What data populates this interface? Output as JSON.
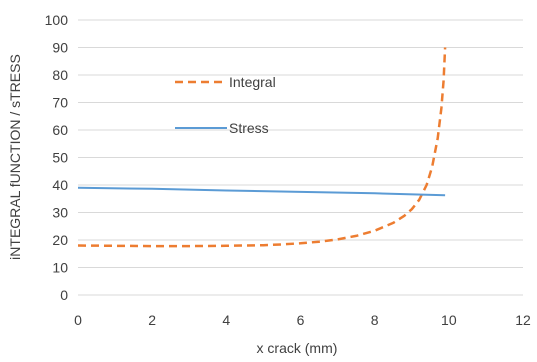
{
  "chart_data": {
    "type": "line",
    "xlabel": "x crack (mm)",
    "ylabel": "iNTEGRAL fUNCTION  /  sTRESS",
    "xlim": [
      0,
      12
    ],
    "ylim": [
      0,
      100
    ],
    "xticks": [
      0,
      2,
      4,
      6,
      8,
      10,
      12
    ],
    "yticks": [
      0,
      10,
      20,
      30,
      40,
      50,
      60,
      70,
      80,
      90,
      100
    ],
    "grid": "horizontal",
    "legend_position": "inside-left",
    "series": [
      {
        "name": "Integral",
        "style": "dashed",
        "color": "#ED7D31",
        "x": [
          0,
          1,
          2,
          3,
          4,
          5,
          5.5,
          6,
          6.5,
          7,
          7.5,
          8,
          8.5,
          8.8,
          9,
          9.2,
          9.4,
          9.55,
          9.7,
          9.8,
          9.86,
          9.9
        ],
        "y": [
          18,
          17.9,
          17.8,
          17.8,
          17.9,
          18.1,
          18.4,
          18.8,
          19.4,
          20.2,
          21.5,
          23.4,
          26.2,
          28.8,
          31.2,
          34.6,
          40,
          46.5,
          57,
          68,
          78,
          90
        ]
      },
      {
        "name": "Stress",
        "style": "solid",
        "color": "#5B9BD5",
        "x": [
          0,
          2,
          4,
          6,
          8,
          9.9
        ],
        "y": [
          39,
          38.6,
          38,
          37.5,
          37,
          36.3
        ]
      }
    ]
  }
}
